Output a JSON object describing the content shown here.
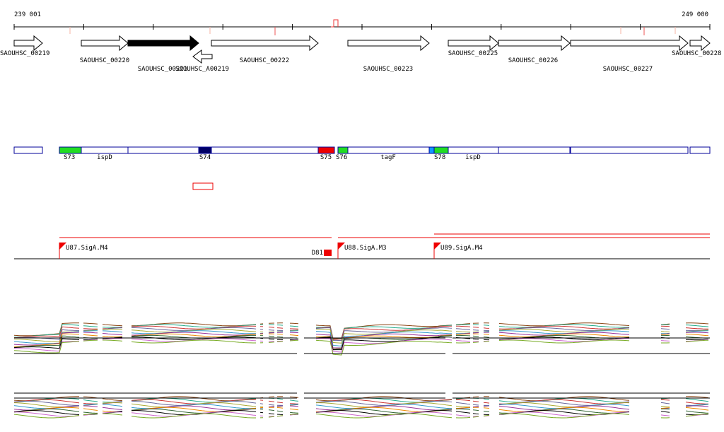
{
  "axis": {
    "start": "239 001",
    "end": "249 000"
  },
  "genes": [
    "SAOUHSC_00219",
    "SAOUHSC_00220",
    "SAOUHSC_00221",
    "SAOUHSC_A00219",
    "SAOUHSC_00222",
    "SAOUHSC_00223",
    "SAOUHSC_00225",
    "SAOUHSC_00226",
    "SAOUHSC_00227",
    "SAOUHSC_00228"
  ],
  "segments": [
    "S73",
    "ispD",
    "S74",
    "S75",
    "S76",
    "tagF",
    "S78",
    "ispD"
  ],
  "promoters": [
    "U87.SigA.M4",
    "D81",
    "U88.SigA.M3",
    "U89.SigA.M4"
  ]
}
